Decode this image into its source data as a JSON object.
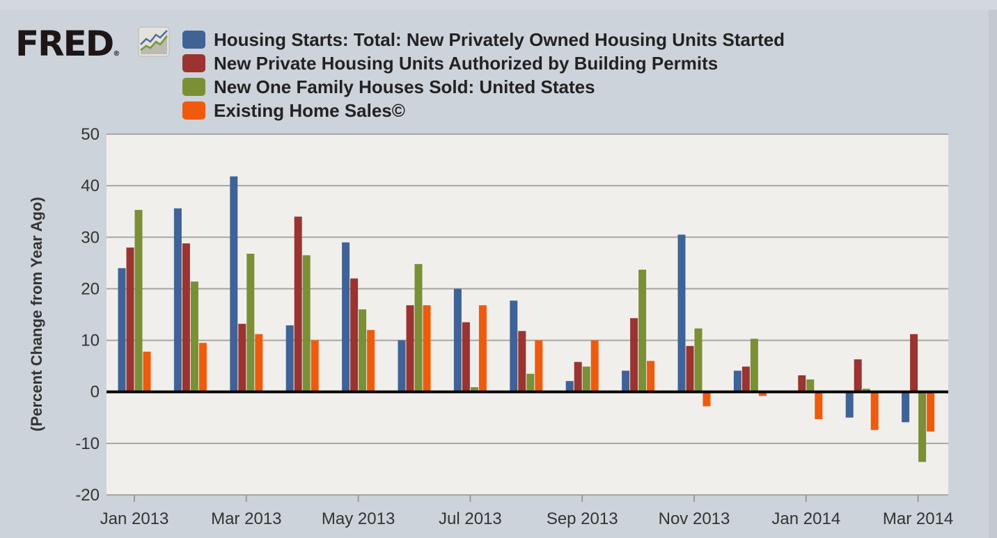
{
  "logo": {
    "text": "FRED"
  },
  "chart_data": {
    "type": "bar",
    "title": "",
    "xlabel": "",
    "ylabel": "(Percent Change from Year Ago)",
    "ylim": [
      -20,
      50
    ],
    "yticks": [
      -20,
      -10,
      0,
      10,
      20,
      30,
      40,
      50
    ],
    "grid": true,
    "legend": "top",
    "categories": [
      "Jan 2013",
      "Feb 2013",
      "Mar 2013",
      "Apr 2013",
      "May 2013",
      "Jun 2013",
      "Jul 2013",
      "Aug 2013",
      "Sep 2013",
      "Oct 2013",
      "Nov 2013",
      "Dec 2013",
      "Jan 2014",
      "Feb 2014",
      "Mar 2014"
    ],
    "xtick_labels": [
      "Jan 2013",
      "Mar 2013",
      "May 2013",
      "Jul 2013",
      "Sep 2013",
      "Nov 2013",
      "Jan 2014",
      "Mar 2014"
    ],
    "series": [
      {
        "name": "Housing Starts: Total: New Privately Owned Housing Units Started",
        "color": "#3f6397",
        "values": [
          24,
          35.6,
          41.8,
          12.9,
          29,
          10,
          20,
          17.7,
          2.1,
          4.1,
          30.5,
          4.1,
          0,
          -5,
          -5.9
        ]
      },
      {
        "name": "New Private Housing Units Authorized by Building Permits",
        "color": "#9b3330",
        "values": [
          28,
          28.8,
          13.2,
          34,
          22,
          16.8,
          13.5,
          11.8,
          5.8,
          14.3,
          8.9,
          4.9,
          3.2,
          6.3,
          11.2
        ]
      },
      {
        "name": "New One Family Houses Sold: United States",
        "color": "#7b8f34",
        "values": [
          35.3,
          21.4,
          26.8,
          26.5,
          16,
          24.8,
          0.9,
          3.5,
          4.9,
          23.7,
          12.3,
          10.3,
          2.4,
          0.6,
          -13.6
        ]
      },
      {
        "name": "Existing Home Sales©",
        "color": "#f05a0c",
        "values": [
          7.8,
          9.5,
          11.2,
          10,
          12,
          16.8,
          16.8,
          10,
          10,
          6,
          -2.8,
          -0.8,
          -5.3,
          -7.4,
          -7.7
        ]
      }
    ]
  }
}
